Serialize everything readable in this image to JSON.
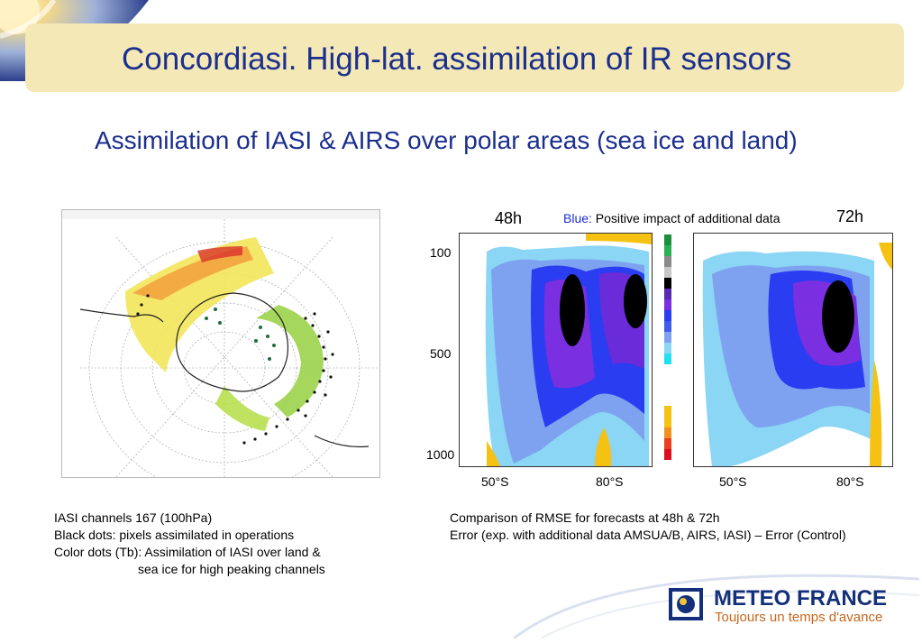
{
  "header": {
    "title": "Concordiasi. High-lat. assimilation of IR sensors"
  },
  "subtitle": "Assimilation of IASI & AIRS over polar areas (sea ice and land)",
  "map": {
    "caption_lines": [
      "IASI channels 167 (100hPa)",
      "Black dots: pixels assimilated in operations",
      "Color dots (Tb): Assimilation of IASI over land &",
      "sea ice for high peaking channels"
    ]
  },
  "comparison": {
    "label_48h": "48h",
    "label_72h": "72h",
    "legend_colored": "Blue:",
    "legend_rest": " Positive impact of additional data",
    "y_labels": [
      "100",
      "500",
      "1000"
    ],
    "x_labels": [
      "50°S",
      "80°S",
      "50°S",
      "80°S"
    ],
    "caption_lines": [
      "Comparison of RMSE for forecasts at 48h &  72h",
      "Error (exp. with additional data AMSUA/B, AIRS, IASI) – Error (Control)"
    ],
    "colors": {
      "blue": "#1a2cd0"
    }
  },
  "logo": {
    "name": "METEO FRANCE",
    "tagline": "Toujours un temps d'avance"
  }
}
